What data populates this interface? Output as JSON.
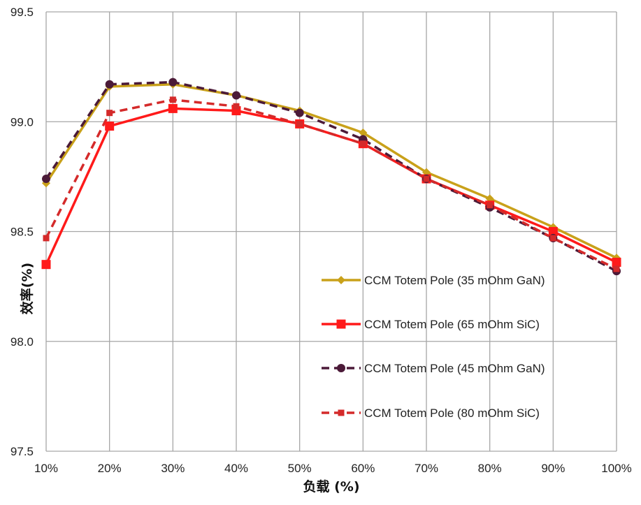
{
  "chart_data": {
    "type": "line",
    "title": "",
    "xlabel": "负载 (%)",
    "ylabel": "效率(%)",
    "categories": [
      "10%",
      "20%",
      "30%",
      "40%",
      "50%",
      "60%",
      "70%",
      "80%",
      "90%",
      "100%"
    ],
    "y_ticks": [
      "97.5",
      "98.0",
      "98.5",
      "99.0",
      "99.5"
    ],
    "ylim": [
      97.5,
      99.5
    ],
    "grid": true,
    "legend_position": "right",
    "series": [
      {
        "name": "CCM Totem Pole (35 mOhm GaN)",
        "color": "#c9a11a",
        "line_style": "solid",
        "marker": "diamond",
        "values": [
          98.72,
          99.16,
          99.17,
          99.12,
          99.05,
          98.95,
          98.77,
          98.65,
          98.52,
          98.38
        ]
      },
      {
        "name": "CCM Totem Pole (65 mOhm SiC)",
        "color": "#ff1a1a",
        "line_style": "solid",
        "marker": "square",
        "values": [
          98.35,
          98.98,
          99.06,
          99.05,
          98.99,
          98.9,
          98.74,
          98.62,
          98.5,
          98.36
        ]
      },
      {
        "name": "CCM Totem Pole (45 mOhm GaN)",
        "color": "#4b1a38",
        "line_style": "dashed",
        "marker": "circle",
        "values": [
          98.74,
          99.17,
          99.18,
          99.12,
          99.04,
          98.92,
          98.74,
          98.61,
          98.47,
          98.32
        ]
      },
      {
        "name": "CCM Totem Pole (80 mOhm SiC)",
        "color": "#d42a2a",
        "line_style": "dashed",
        "marker": "small-square",
        "values": [
          98.47,
          99.04,
          99.1,
          99.07,
          98.99,
          98.9,
          98.74,
          98.62,
          98.47,
          98.33
        ]
      }
    ]
  }
}
